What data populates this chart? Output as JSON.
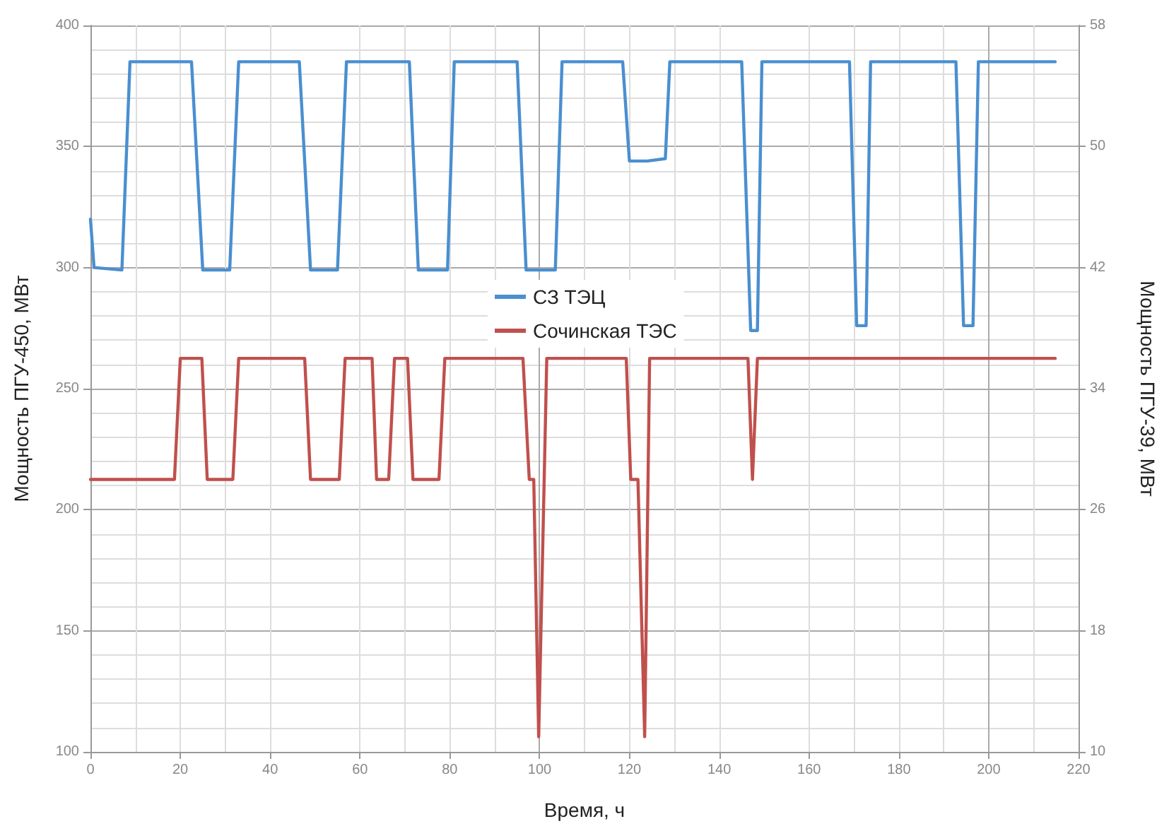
{
  "chart_data": {
    "type": "line",
    "xlabel": "Время, ч",
    "ylabel": "Мощность ПГУ-450, МВт",
    "y2label": "Мощность ПГУ-39, МВт",
    "xlim": [
      0,
      220
    ],
    "xticks": [
      0,
      20,
      40,
      60,
      80,
      100,
      120,
      140,
      160,
      180,
      200,
      220
    ],
    "ylim": [
      100,
      400
    ],
    "yticks": [
      100,
      150,
      200,
      250,
      300,
      350,
      400
    ],
    "y2lim": [
      10,
      58
    ],
    "y2ticks": [
      10,
      18,
      26,
      34,
      42,
      50,
      58
    ],
    "grid": true,
    "legend": "center",
    "marker": "none",
    "line_style": "solid",
    "series": [
      {
        "name": "СЗ ТЭЦ",
        "color": "#4a8fd0",
        "x": [
          0,
          0.8,
          7,
          8.8,
          22.5,
          25,
          31,
          33,
          46.5,
          49,
          55,
          57,
          71,
          73,
          79.5,
          81,
          95,
          97,
          103.5,
          105,
          118.5,
          120,
          124,
          128,
          129,
          145,
          147,
          148.5,
          149.5,
          169,
          170.6,
          172.7,
          173.7,
          192.7,
          194.4,
          196.5,
          197.7,
          214.8
        ],
        "values": [
          320,
          300,
          299,
          385,
          385,
          299,
          299,
          385,
          385,
          299,
          299,
          385,
          385,
          299,
          299,
          385,
          385,
          299,
          299,
          385,
          385,
          344,
          344,
          345,
          385,
          385,
          274,
          274,
          385,
          385,
          276,
          276,
          385,
          385,
          276,
          276,
          385,
          385
        ]
      },
      {
        "name": "Сочинская ТЭС",
        "color": "#c0504d",
        "axis": "y2",
        "x": [
          0,
          18.7,
          20,
          24.8,
          26,
          31.7,
          33,
          47.7,
          49,
          55.4,
          56.7,
          62.7,
          63.7,
          66.4,
          67.7,
          70.6,
          71.8,
          77.6,
          78.9,
          96.3,
          97.7,
          98.7,
          99.8,
          101.6,
          119.3,
          120.3,
          121.9,
          123.4,
          124.5,
          146.4,
          147.4,
          148.5,
          214.8
        ],
        "values": [
          28,
          28,
          36,
          36,
          28,
          28,
          36,
          36,
          28,
          28,
          36,
          36,
          28,
          28,
          36,
          36,
          28,
          28,
          36,
          36,
          28,
          28,
          11,
          36,
          36,
          28,
          28,
          11,
          36,
          36,
          28,
          36,
          36
        ]
      }
    ]
  }
}
